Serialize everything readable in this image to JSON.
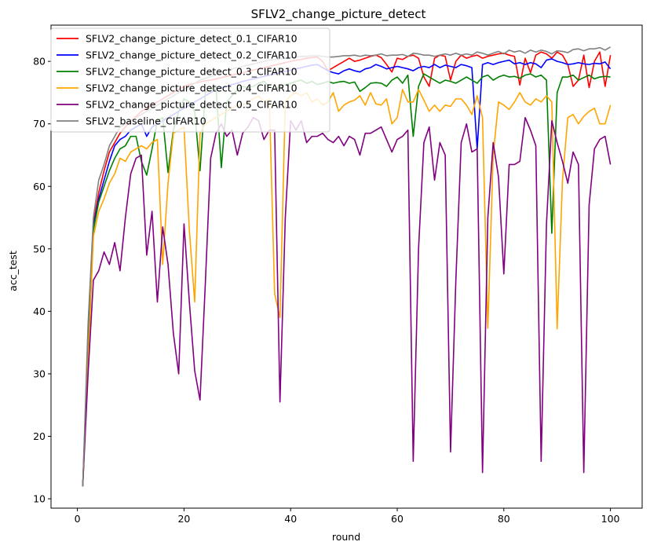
{
  "chart_data": {
    "type": "line",
    "title": "SFLV2_change_picture_detect",
    "xlabel": "round",
    "ylabel": "acc_test",
    "xlim": [
      -4.95,
      105.95
    ],
    "ylim": [
      8.5,
      85.8
    ],
    "xticks": [
      0,
      20,
      40,
      60,
      80,
      100
    ],
    "yticks": [
      10,
      20,
      30,
      40,
      50,
      60,
      70,
      80
    ],
    "grid": false,
    "legend_position": "top-left",
    "x": [
      1,
      2,
      3,
      4,
      5,
      6,
      7,
      8,
      9,
      10,
      11,
      12,
      13,
      14,
      15,
      16,
      17,
      18,
      19,
      20,
      21,
      22,
      23,
      24,
      25,
      26,
      27,
      28,
      29,
      30,
      31,
      32,
      33,
      34,
      35,
      36,
      37,
      38,
      39,
      40,
      41,
      42,
      43,
      44,
      45,
      46,
      47,
      48,
      49,
      50,
      51,
      52,
      53,
      54,
      55,
      56,
      57,
      58,
      59,
      60,
      61,
      62,
      63,
      64,
      65,
      66,
      67,
      68,
      69,
      70,
      71,
      72,
      73,
      74,
      75,
      76,
      77,
      78,
      79,
      80,
      81,
      82,
      83,
      84,
      85,
      86,
      87,
      88,
      89,
      90,
      91,
      92,
      93,
      94,
      95,
      96,
      97,
      98,
      99,
      100
    ],
    "series": [
      {
        "name": "SFLV2_change_picture_detect_0.1_CIFAR10",
        "color": "#ff0000",
        "values": [
          12.0,
          35.0,
          54.0,
          59.0,
          62.5,
          65.5,
          67.0,
          68.5,
          69.5,
          70.5,
          71.2,
          72.0,
          72.5,
          73.0,
          73.5,
          74.0,
          74.5,
          75.0,
          75.5,
          76.0,
          76.3,
          76.5,
          76.7,
          76.9,
          77.0,
          77.2,
          77.4,
          77.6,
          77.8,
          78.0,
          78.2,
          78.4,
          78.6,
          78.8,
          79.0,
          79.2,
          79.4,
          79.6,
          79.8,
          80.0,
          80.2,
          80.3,
          80.5,
          80.6,
          80.7,
          80.0,
          78.5,
          79.0,
          79.5,
          80.0,
          80.5,
          80.0,
          80.2,
          80.5,
          80.8,
          81.0,
          80.6,
          79.5,
          78.3,
          80.5,
          80.3,
          80.8,
          81.0,
          80.5,
          77.5,
          76.0,
          80.5,
          81.0,
          80.8,
          77.0,
          80.0,
          81.0,
          80.5,
          80.8,
          81.0,
          80.5,
          80.8,
          81.0,
          81.2,
          81.3,
          81.0,
          80.8,
          76.2,
          80.5,
          78.2,
          81.0,
          81.5,
          81.2,
          80.5,
          81.5,
          81.0,
          79.5,
          76.0,
          77.0,
          81.0,
          75.8,
          80.0,
          81.5,
          76.0,
          81.0
        ]
      },
      {
        "name": "SFLV2_change_picture_detect_0.2_CIFAR10",
        "color": "#0000ff",
        "values": [
          12.0,
          34.0,
          53.5,
          58.0,
          61.0,
          64.0,
          66.5,
          67.5,
          68.0,
          69.0,
          69.5,
          70.0,
          68.0,
          69.5,
          70.0,
          70.5,
          71.0,
          71.5,
          72.0,
          72.5,
          73.0,
          73.5,
          74.0,
          74.5,
          75.0,
          75.5,
          75.8,
          76.0,
          76.3,
          76.5,
          76.8,
          77.0,
          77.2,
          77.4,
          77.6,
          77.8,
          78.0,
          78.2,
          78.4,
          78.6,
          78.8,
          79.0,
          79.2,
          79.4,
          79.5,
          79.0,
          78.5,
          78.2,
          78.0,
          78.5,
          78.8,
          78.5,
          78.3,
          78.8,
          79.0,
          79.5,
          79.2,
          78.8,
          79.0,
          79.2,
          79.0,
          78.8,
          78.5,
          79.0,
          79.2,
          79.0,
          79.5,
          79.0,
          79.4,
          79.2,
          79.0,
          79.5,
          79.3,
          79.0,
          66.0,
          79.5,
          79.8,
          79.5,
          79.8,
          80.0,
          80.2,
          79.6,
          79.8,
          79.5,
          79.8,
          79.6,
          79.0,
          80.2,
          80.4,
          80.0,
          79.8,
          79.5,
          79.6,
          79.8,
          79.6,
          79.5,
          79.7,
          79.6,
          79.9,
          78.8
        ]
      },
      {
        "name": "SFLV2_change_picture_detect_0.3_CIFAR10",
        "color": "#008000",
        "values": [
          12.0,
          33.0,
          53.0,
          57.5,
          60.0,
          62.5,
          64.5,
          66.0,
          66.5,
          68.0,
          68.0,
          64.0,
          61.8,
          66.0,
          70.5,
          71.0,
          62.2,
          69.0,
          72.0,
          74.0,
          73.5,
          72.0,
          62.5,
          75.0,
          75.5,
          76.0,
          63.0,
          73.5,
          74.5,
          75.5,
          76.0,
          75.8,
          76.0,
          76.5,
          76.8,
          76.0,
          75.5,
          76.0,
          76.3,
          76.5,
          76.8,
          77.0,
          76.5,
          76.8,
          76.3,
          76.5,
          76.8,
          76.5,
          76.7,
          76.8,
          76.5,
          76.7,
          75.2,
          75.8,
          76.5,
          76.6,
          76.5,
          76.0,
          77.0,
          77.5,
          76.5,
          77.8,
          68.0,
          76.0,
          78.0,
          77.5,
          77.0,
          76.5,
          77.0,
          76.8,
          76.5,
          77.0,
          77.5,
          77.0,
          76.5,
          77.5,
          77.8,
          77.0,
          77.5,
          77.8,
          77.5,
          77.6,
          77.3,
          77.8,
          78.0,
          77.5,
          77.8,
          77.0,
          52.5,
          75.0,
          77.5,
          77.5,
          77.8,
          77.0,
          77.4,
          77.8,
          77.2,
          77.5,
          77.6,
          77.5
        ]
      },
      {
        "name": "SFLV2_change_picture_detect_0.4_CIFAR10",
        "color": "#ffa500",
        "values": [
          12.0,
          32.0,
          52.0,
          56.0,
          58.0,
          60.5,
          62.0,
          64.5,
          64.0,
          65.5,
          66.0,
          66.5,
          66.0,
          67.0,
          67.5,
          47.5,
          60.5,
          68.5,
          69.0,
          69.5,
          53.0,
          41.5,
          68.5,
          70.0,
          70.5,
          71.0,
          71.5,
          72.0,
          72.5,
          73.0,
          73.0,
          73.5,
          74.0,
          74.5,
          73.5,
          74.0,
          42.8,
          39.0,
          73.5,
          74.5,
          75.0,
          74.5,
          75.0,
          73.5,
          74.0,
          73.0,
          73.5,
          75.0,
          72.0,
          73.0,
          73.5,
          73.8,
          74.5,
          73.0,
          75.0,
          73.2,
          73.0,
          74.0,
          70.0,
          71.0,
          75.5,
          73.5,
          73.5,
          75.5,
          73.8,
          72.0,
          73.0,
          72.0,
          73.0,
          72.8,
          74.0,
          74.0,
          73.0,
          71.5,
          74.5,
          71.0,
          37.3,
          65.0,
          73.5,
          73.0,
          72.3,
          73.5,
          75.0,
          73.5,
          73.0,
          74.0,
          73.5,
          74.5,
          73.5,
          37.2,
          61.0,
          71.0,
          71.5,
          70.0,
          71.2,
          72.0,
          72.5,
          70.0,
          70.0,
          73.0
        ]
      },
      {
        "name": "SFLV2_change_picture_detect_0.5_CIFAR10",
        "color": "#800080",
        "values": [
          12.0,
          30.0,
          45.0,
          46.5,
          49.5,
          47.5,
          51.0,
          46.5,
          55.0,
          62.0,
          64.5,
          65.0,
          49.0,
          56.0,
          41.5,
          53.5,
          47.5,
          36.5,
          30.0,
          54.0,
          41.5,
          30.5,
          25.8,
          44.5,
          64.5,
          68.5,
          70.0,
          68.0,
          69.0,
          65.0,
          68.5,
          69.5,
          71.0,
          70.5,
          67.5,
          69.0,
          69.0,
          25.5,
          55.0,
          70.5,
          69.0,
          70.5,
          67.0,
          68.0,
          68.0,
          68.5,
          67.5,
          67.0,
          68.0,
          66.5,
          68.0,
          67.5,
          65.0,
          68.5,
          68.5,
          69.0,
          69.5,
          67.5,
          65.5,
          67.5,
          68.0,
          69.0,
          16.0,
          50.0,
          67.0,
          69.5,
          61.0,
          67.0,
          65.0,
          17.5,
          45.0,
          67.0,
          70.0,
          65.5,
          66.0,
          14.2,
          55.0,
          67.0,
          61.5,
          46.0,
          63.5,
          63.5,
          64.0,
          71.0,
          69.0,
          66.5,
          16.0,
          54.0,
          70.5,
          67.0,
          64.0,
          60.5,
          65.5,
          63.5,
          14.2,
          57.0,
          66.0,
          67.5,
          68.0,
          63.5
        ]
      },
      {
        "name": "SFLV2_baseline_CIFAR10",
        "color": "#808080",
        "values": [
          12.0,
          38.0,
          55.0,
          61.0,
          63.5,
          66.5,
          68.0,
          69.5,
          70.0,
          70.5,
          71.0,
          71.5,
          72.0,
          72.5,
          73.0,
          73.5,
          74.0,
          74.5,
          75.0,
          75.5,
          76.0,
          76.5,
          77.0,
          77.3,
          77.6,
          77.9,
          78.2,
          78.5,
          78.8,
          79.0,
          79.2,
          79.4,
          79.6,
          79.8,
          80.0,
          80.2,
          80.3,
          80.4,
          80.5,
          80.6,
          80.7,
          80.8,
          80.8,
          80.9,
          80.9,
          80.8,
          80.7,
          80.7,
          80.8,
          80.9,
          80.9,
          81.0,
          80.8,
          81.0,
          80.9,
          81.0,
          81.2,
          80.9,
          81.0,
          81.0,
          81.1,
          80.8,
          81.3,
          81.2,
          81.0,
          81.0,
          80.8,
          81.0,
          81.2,
          81.0,
          81.3,
          81.0,
          81.2,
          81.0,
          81.5,
          81.3,
          81.0,
          81.3,
          81.6,
          81.2,
          81.8,
          81.5,
          81.7,
          81.3,
          81.8,
          81.5,
          81.8,
          81.6,
          81.2,
          81.7,
          81.6,
          81.4,
          81.9,
          82.0,
          81.7,
          82.0,
          82.0,
          82.2,
          81.8,
          82.3
        ]
      }
    ]
  }
}
